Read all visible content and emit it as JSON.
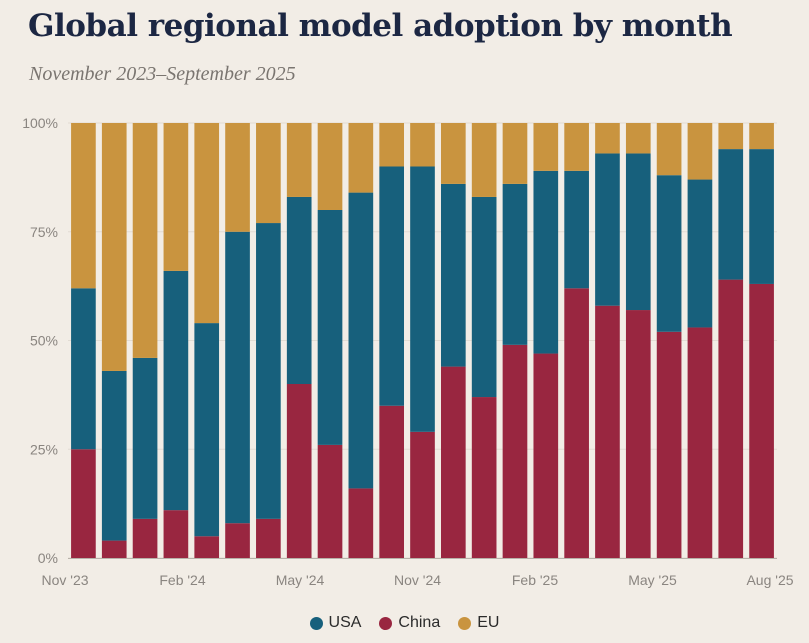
{
  "title": "Global regional model adoption by month",
  "subtitle": "November 2023–September 2025",
  "colors": {
    "USA": "#17607C",
    "China": "#992640",
    "EU": "#C9943F"
  },
  "chart_data": {
    "type": "bar",
    "stacked": true,
    "title": "Global regional model adoption by month",
    "subtitle": "November 2023–September 2025",
    "xlabel": "",
    "ylabel": "",
    "ylim": [
      0,
      100
    ],
    "y_ticks": [
      "0%",
      "25%",
      "50%",
      "75%",
      "100%"
    ],
    "y_tick_values": [
      0,
      25,
      50,
      75,
      100
    ],
    "x_tick_labels": [
      "Nov '23",
      "Feb '24",
      "May '24",
      "Nov '24",
      "Feb '25",
      "May '25",
      "Aug '25"
    ],
    "categories": [
      "Nov 2023",
      "Dec 2023",
      "Jan 2024",
      "Feb 2024",
      "Mar 2024",
      "Apr 2024",
      "May 2024",
      "Jun 2024",
      "Jul 2024",
      "Aug 2024",
      "Sep 2024",
      "Oct 2024",
      "Nov 2024",
      "Dec 2024",
      "Jan 2025",
      "Feb 2025",
      "Mar 2025",
      "Apr 2025",
      "May 2025",
      "Jun 2025",
      "Jul 2025",
      "Aug 2025",
      "Sep 2025"
    ],
    "series": [
      {
        "name": "China",
        "values": [
          25,
          4,
          9,
          11,
          5,
          8,
          9,
          40,
          26,
          16,
          35,
          29,
          44,
          37,
          49,
          47,
          62,
          58,
          57,
          52,
          53,
          64,
          63
        ]
      },
      {
        "name": "USA",
        "values": [
          37,
          39,
          37,
          55,
          49,
          67,
          68,
          43,
          54,
          68,
          55,
          61,
          42,
          46,
          37,
          42,
          27,
          35,
          36,
          36,
          34,
          30,
          31
        ]
      },
      {
        "name": "EU",
        "values": [
          38,
          57,
          54,
          34,
          46,
          25,
          23,
          17,
          20,
          16,
          10,
          10,
          14,
          17,
          14,
          11,
          11,
          7,
          7,
          12,
          13,
          6,
          6
        ]
      }
    ],
    "legend": [
      "USA",
      "China",
      "EU"
    ],
    "legend_position": "bottom-center",
    "grid": true
  }
}
